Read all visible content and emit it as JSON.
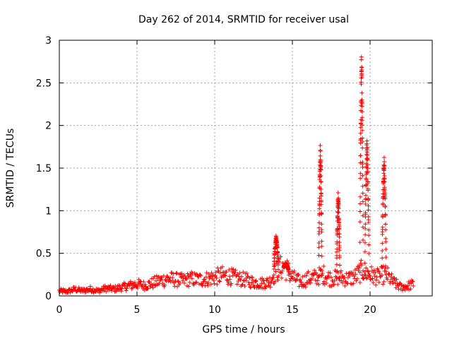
{
  "chart_data": {
    "type": "scatter",
    "title": "Day 262 of 2014, SRMTID for receiver usal",
    "xlabel": "GPS time / hours",
    "ylabel": "SRMTID / TECUs",
    "xlim": [
      0,
      24
    ],
    "ylim": [
      0,
      3
    ],
    "xticks": [
      0,
      5,
      10,
      15,
      20
    ],
    "yticks": [
      0,
      0.5,
      1,
      1.5,
      2,
      2.5,
      3
    ],
    "ytick_labels": [
      "0",
      "0.5",
      "1",
      "1.5",
      "2",
      "2.5",
      "3"
    ],
    "grid": true,
    "marker": "+",
    "series": [
      {
        "name": "SRMTID",
        "color": "#ff0000",
        "baseline": [
          [
            0.0,
            0.06
          ],
          [
            0.5,
            0.05
          ],
          [
            1.0,
            0.08
          ],
          [
            1.5,
            0.06
          ],
          [
            2.0,
            0.08
          ],
          [
            2.5,
            0.06
          ],
          [
            3.0,
            0.09
          ],
          [
            3.5,
            0.08
          ],
          [
            4.0,
            0.1
          ],
          [
            4.5,
            0.12
          ],
          [
            5.0,
            0.14
          ],
          [
            5.5,
            0.12
          ],
          [
            6.0,
            0.15
          ],
          [
            6.5,
            0.18
          ],
          [
            7.0,
            0.2
          ],
          [
            7.5,
            0.19
          ],
          [
            8.0,
            0.18
          ],
          [
            8.5,
            0.2
          ],
          [
            9.0,
            0.19
          ],
          [
            9.5,
            0.2
          ],
          [
            10.0,
            0.22
          ],
          [
            10.5,
            0.24
          ],
          [
            11.0,
            0.23
          ],
          [
            11.5,
            0.2
          ],
          [
            12.0,
            0.19
          ],
          [
            12.5,
            0.16
          ],
          [
            13.0,
            0.15
          ],
          [
            13.5,
            0.16
          ],
          [
            14.0,
            0.3
          ],
          [
            14.5,
            0.35
          ],
          [
            15.0,
            0.22
          ],
          [
            15.5,
            0.16
          ],
          [
            16.0,
            0.2
          ],
          [
            16.5,
            0.22
          ],
          [
            17.0,
            0.25
          ],
          [
            17.5,
            0.2
          ],
          [
            18.0,
            0.22
          ],
          [
            18.5,
            0.2
          ],
          [
            19.0,
            0.22
          ],
          [
            19.5,
            0.3
          ],
          [
            20.0,
            0.25
          ],
          [
            20.5,
            0.22
          ],
          [
            21.0,
            0.26
          ],
          [
            21.5,
            0.16
          ],
          [
            22.0,
            0.1
          ],
          [
            22.5,
            0.12
          ],
          [
            22.8,
            0.14
          ]
        ],
        "spikes": [
          {
            "t": 13.95,
            "peak": 0.72,
            "width": 0.28
          },
          {
            "t": 14.6,
            "peak": 0.38,
            "width": 0.3
          },
          {
            "t": 16.8,
            "peak": 1.83,
            "width": 0.2
          },
          {
            "t": 17.95,
            "peak": 1.25,
            "width": 0.2
          },
          {
            "t": 19.45,
            "peak": 2.92,
            "width": 0.2
          },
          {
            "t": 19.8,
            "peak": 1.9,
            "width": 0.25
          },
          {
            "t": 20.9,
            "peak": 1.7,
            "width": 0.25
          }
        ]
      }
    ]
  }
}
